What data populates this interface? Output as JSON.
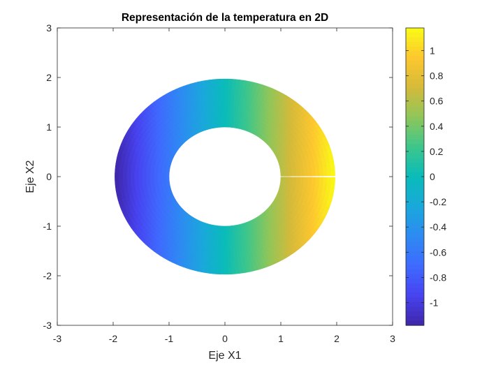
{
  "chart_data": {
    "type": "heatmap",
    "title": "Representación de la temperatura en 2D",
    "xlabel": "Eje X1",
    "ylabel": "Eje X2",
    "xlim": [
      -3,
      3
    ],
    "ylim": [
      -3,
      3
    ],
    "x_ticks": [
      -3,
      -2,
      -1,
      0,
      1,
      2,
      3
    ],
    "y_ticks": [
      -3,
      -2,
      -1,
      0,
      1,
      2,
      3
    ],
    "x_tick_labels": [
      "-3",
      "-2",
      "-1",
      "0",
      "1",
      "2",
      "3"
    ],
    "y_tick_labels": [
      "-3",
      "-2",
      "-1",
      "0",
      "1",
      "2",
      "3"
    ],
    "grid": false,
    "domain": {
      "shape": "annulus",
      "inner_radius": 1,
      "outer_radius": 1.97,
      "angle_range_deg": [
        0.5,
        359.5
      ],
      "gap_at_angle_deg": 0
    },
    "field": "value ≈ x1 * 0.6 (temperature varies linearly along Eje X1)",
    "value_slope_per_x1": 0.6,
    "colorbar": {
      "colormap": "parula",
      "position": "right",
      "range": [
        -1.18,
        1.18
      ],
      "ticks": [
        1,
        0.8,
        0.6,
        0.4,
        0.2,
        0,
        -0.2,
        -0.4,
        -0.6,
        -0.8,
        -1
      ],
      "tick_labels": [
        "1",
        "0.8",
        "0.6",
        "0.4",
        "0.2",
        "0",
        "-0.2",
        "-0.4",
        "-0.6",
        "-0.8",
        "-1"
      ]
    },
    "colormap_stops": [
      "#3E26A8",
      "#4743F0",
      "#3F6AFE",
      "#2D8BF2",
      "#1AA8DB",
      "#09BCB9",
      "#3DC68B",
      "#8FC65A",
      "#D5BA3A",
      "#FDC72F",
      "#F9FB15"
    ]
  }
}
